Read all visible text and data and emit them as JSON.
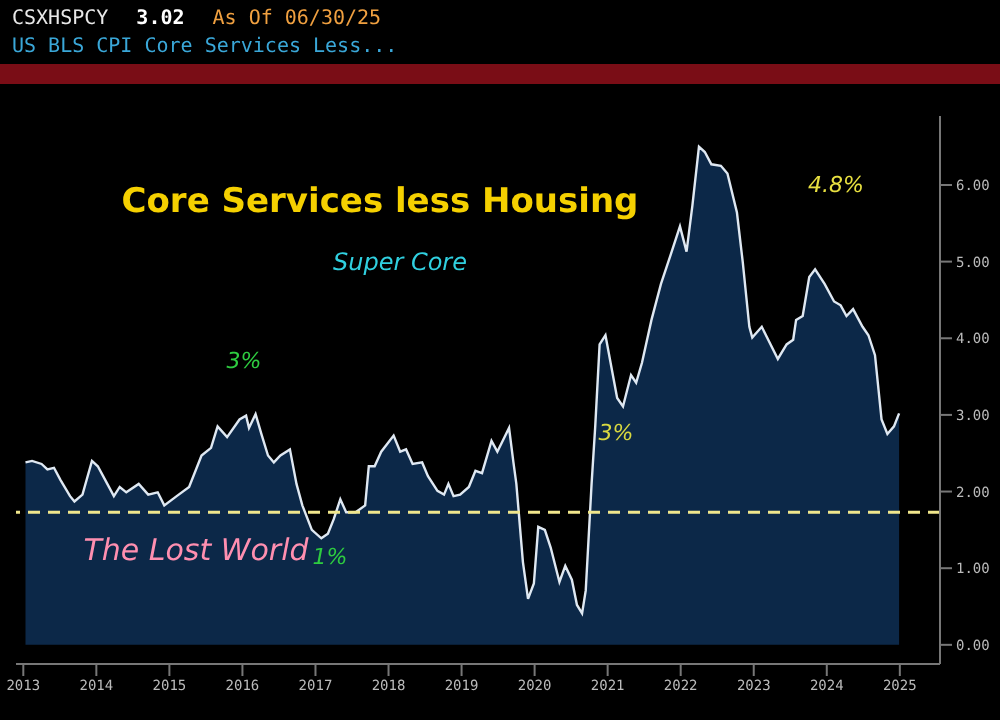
{
  "chart_data": {
    "type": "area",
    "title": "Core Services less Housing",
    "subtitle": "Super Core",
    "annotations": [
      "CSXHSPCY",
      "3.02",
      "As Of 06/30/25",
      "US BLS CPI Core Services Less...",
      "The Lost World",
      "3%",
      "1%",
      "3%",
      "4.8%"
    ],
    "x": [
      2013.53,
      2013.62,
      2013.75,
      2013.83,
      2013.92,
      2014.01,
      2014.14,
      2014.2,
      2014.31,
      2014.44,
      2014.52,
      2014.65,
      2014.74,
      2014.82,
      2014.91,
      2015.08,
      2015.21,
      2015.34,
      2015.43,
      2015.6,
      2015.77,
      2015.94,
      2016.07,
      2016.16,
      2016.29,
      2016.46,
      2016.55,
      2016.59,
      2016.68,
      2016.76,
      2016.85,
      2016.93,
      2017.02,
      2017.15,
      2017.24,
      2017.32,
      2017.45,
      2017.58,
      2017.67,
      2017.75,
      2017.84,
      2017.92,
      2018.05,
      2018.18,
      2018.23,
      2018.31,
      2018.4,
      2018.57,
      2018.66,
      2018.74,
      2018.83,
      2018.96,
      2019.04,
      2019.17,
      2019.26,
      2019.32,
      2019.39,
      2019.48,
      2019.6,
      2019.69,
      2019.78,
      2019.91,
      2019.99,
      2020.15,
      2020.21,
      2020.25,
      2020.34,
      2020.41,
      2020.49,
      2020.55,
      2020.64,
      2020.72,
      2020.84,
      2020.92,
      2021.01,
      2021.08,
      2021.15,
      2021.2,
      2021.28,
      2021.33,
      2021.39,
      2021.47,
      2021.63,
      2021.71,
      2021.82,
      2021.89,
      2021.97,
      2022.1,
      2022.23,
      2022.36,
      2022.49,
      2022.58,
      2022.66,
      2022.75,
      2022.83,
      2022.92,
      2023.05,
      2023.14,
      2023.27,
      2023.35,
      2023.44,
      2023.48,
      2023.61,
      2023.83,
      2023.95,
      2024.04,
      2024.08,
      2024.17,
      2024.26,
      2024.34,
      2024.47,
      2024.6,
      2024.69,
      2024.77,
      2024.86,
      2024.99,
      2025.07,
      2025.16,
      2025.25,
      2025.33,
      2025.42,
      2025.49
    ],
    "series": [
      {
        "color": "#0c2848",
        "values": [
          2.38,
          2.4,
          2.36,
          2.29,
          2.31,
          2.15,
          1.94,
          1.87,
          1.96,
          2.4,
          2.33,
          2.1,
          1.94,
          2.06,
          1.99,
          2.1,
          1.96,
          1.99,
          1.82,
          1.94,
          2.06,
          2.47,
          2.57,
          2.85,
          2.71,
          2.94,
          2.99,
          2.83,
          3.01,
          2.75,
          2.47,
          2.38,
          2.47,
          2.55,
          2.1,
          1.82,
          1.5,
          1.39,
          1.45,
          1.64,
          1.9,
          1.73,
          1.73,
          1.82,
          2.33,
          2.33,
          2.52,
          2.73,
          2.52,
          2.55,
          2.36,
          2.38,
          2.2,
          2.01,
          1.96,
          2.1,
          1.94,
          1.96,
          2.06,
          2.27,
          2.24,
          2.66,
          2.52,
          2.83,
          2.38,
          2.1,
          1.08,
          0.6,
          0.8,
          1.54,
          1.5,
          1.27,
          0.82,
          1.03,
          0.85,
          0.52,
          0.41,
          0.71,
          2.1,
          2.85,
          3.92,
          4.04,
          3.22,
          3.11,
          3.52,
          3.42,
          3.68,
          4.24,
          4.71,
          5.08,
          5.46,
          5.13,
          5.73,
          6.5,
          6.43,
          6.27,
          6.25,
          6.15,
          5.64,
          4.99,
          4.15,
          4.01,
          4.15,
          3.73,
          3.92,
          3.98,
          4.24,
          4.29,
          4.8,
          4.9,
          4.71,
          4.48,
          4.43,
          4.29,
          4.38,
          4.15,
          4.04,
          3.78,
          2.94,
          2.75,
          2.85,
          3.02
        ]
      }
    ],
    "ref_lines": [
      {
        "axis": "y",
        "value": 1.73,
        "color": "#f0e68c",
        "line_style": "dashed"
      }
    ],
    "xlim": [
      2013.4,
      2026.05
    ],
    "xticks": [
      {
        "value": 2013.5,
        "label": "2013"
      },
      {
        "value": 2014.5,
        "label": "2014"
      },
      {
        "value": 2015.5,
        "label": "2015"
      },
      {
        "value": 2016.5,
        "label": "2016"
      },
      {
        "value": 2017.5,
        "label": "2017"
      },
      {
        "value": 2018.5,
        "label": "2018"
      },
      {
        "value": 2019.5,
        "label": "2019"
      },
      {
        "value": 2020.5,
        "label": "2020"
      },
      {
        "value": 2021.5,
        "label": "2021"
      },
      {
        "value": 2022.5,
        "label": "2022"
      },
      {
        "value": 2023.5,
        "label": "2023"
      },
      {
        "value": 2024.5,
        "label": "2024"
      },
      {
        "value": 2025.5,
        "label": "2025"
      }
    ],
    "ylim": [
      -0.25,
      6.9
    ],
    "yticks": [
      {
        "value": 0,
        "label": "0.00"
      },
      {
        "value": 1,
        "label": "1.00"
      },
      {
        "value": 2,
        "label": "2.00"
      },
      {
        "value": 3,
        "label": "3.00"
      },
      {
        "value": 4,
        "label": "4.00"
      },
      {
        "value": 5,
        "label": "5.00"
      },
      {
        "value": 6,
        "label": "6.00"
      }
    ],
    "grid": false,
    "legend": false
  }
}
